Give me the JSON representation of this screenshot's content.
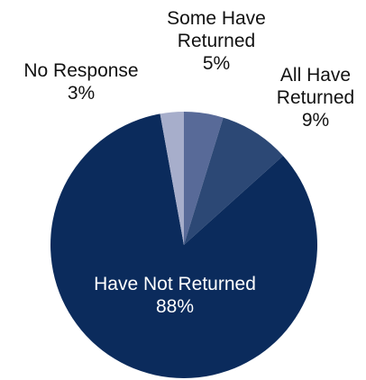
{
  "chart_data": {
    "type": "pie",
    "slices": [
      {
        "label_lines": [
          "Some Have",
          "Returned"
        ],
        "value_label": "5%",
        "value": 5,
        "color": "#586a98"
      },
      {
        "label_lines": [
          "All Have",
          "Returned"
        ],
        "value_label": "9%",
        "value": 9,
        "color": "#2c4875"
      },
      {
        "label_lines": [
          "Have Not Returned"
        ],
        "value_label": "88%",
        "value": 88,
        "color": "#0b2b5c"
      },
      {
        "label_lines": [
          "No Response"
        ],
        "value_label": "3%",
        "value": 3,
        "color": "#a7aecb"
      }
    ],
    "title": "",
    "legend": "none",
    "labels": "outside, except largest slice labeled inside"
  }
}
